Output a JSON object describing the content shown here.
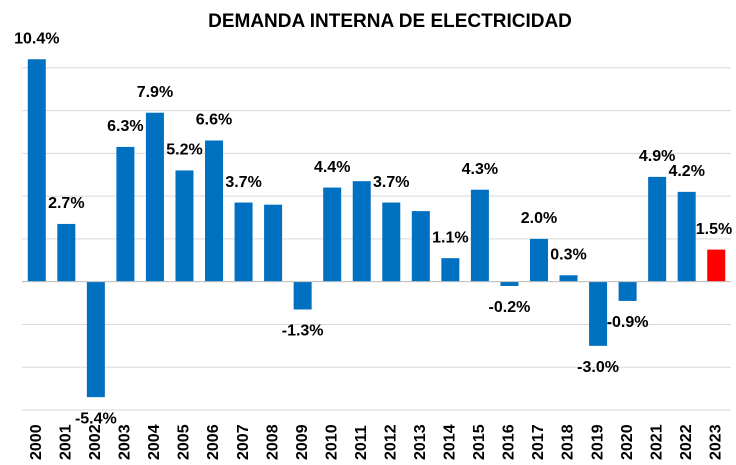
{
  "chart_data": {
    "type": "bar",
    "title": "DEMANDA INTERNA DE ELECTRICIDAD",
    "categories": [
      "2000",
      "2001",
      "2002",
      "2003",
      "2004",
      "2005",
      "2006",
      "2007",
      "2008",
      "2009",
      "2010",
      "2011",
      "2012",
      "2013",
      "2014",
      "2015",
      "2016",
      "2017",
      "2018",
      "2019",
      "2020",
      "2021",
      "2022",
      "2023"
    ],
    "values": [
      10.4,
      2.7,
      -5.4,
      6.3,
      7.9,
      5.2,
      6.6,
      3.7,
      3.6,
      -1.3,
      4.4,
      4.7,
      3.7,
      3.3,
      1.1,
      4.3,
      -0.2,
      2.0,
      0.3,
      -3.0,
      -0.9,
      4.9,
      4.2,
      1.5
    ],
    "value_labels": [
      "10.4%",
      "2.7%",
      "-5.4%",
      "6.3%",
      "7.9%",
      "5.2%",
      "6.6%",
      "3.7%",
      null,
      "-1.3%",
      "4.4%",
      null,
      "3.7%",
      null,
      "1.1%",
      "4.3%",
      "-0.2%",
      "2.0%",
      "0.3%",
      "-3.0%",
      "-0.9%",
      "4.9%",
      "4.2%",
      "1.5%"
    ],
    "colors": [
      "#0070c0",
      "#0070c0",
      "#0070c0",
      "#0070c0",
      "#0070c0",
      "#0070c0",
      "#0070c0",
      "#0070c0",
      "#0070c0",
      "#0070c0",
      "#0070c0",
      "#0070c0",
      "#0070c0",
      "#0070c0",
      "#0070c0",
      "#0070c0",
      "#0070c0",
      "#0070c0",
      "#0070c0",
      "#0070c0",
      "#0070c0",
      "#0070c0",
      "#0070c0",
      "#ff0000"
    ],
    "ylim": [
      -6,
      11.3
    ],
    "yticks": [
      -6,
      -4,
      -2,
      0,
      2,
      4,
      6,
      8,
      10
    ],
    "grid": true
  }
}
